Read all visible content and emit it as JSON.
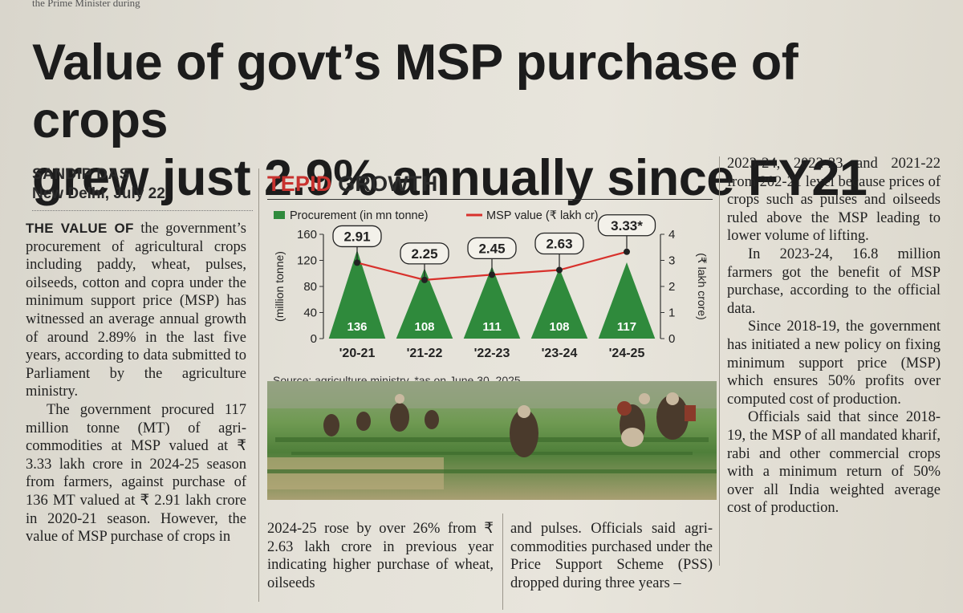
{
  "masthead_fragment": "the Prime Minister during",
  "headline": {
    "line1": "Value of govt’s MSP purchase of crops",
    "line2": "grew just 2.9% annually since FY21"
  },
  "byline": {
    "author": "SANDIP DAS",
    "dateline": "New Delhi, July 22"
  },
  "article": {
    "col1": [
      {
        "lead": "THE VALUE OF",
        "text": " the government’s procurement of agricultural crops including paddy, wheat, pulses, oilseeds, cotton and copra under the minimum support price (MSP) has witnessed an average annual growth of around 2.89% in the last five years, according to data submitted to Parliament by the agriculture ministry."
      },
      {
        "text": "The government procured 117 million tonne (MT) of agri-commodities at MSP valued at ₹ 3.33 lakh crore in 2024-25 season from farmers, against purchase of 136 MT valued at ₹ 2.91 lakh crore in 2020-21 season. However, the value of MSP purchase of crops in"
      }
    ],
    "col2": "2024-25 rose by over 26% from ₹ 2.63 lakh crore in previous year indicating higher purchase of wheat, oilseeds",
    "col3": "and pulses. Officials said agri-commodities purchased under the Price Support Scheme (PSS) dropped during three years –",
    "col4": [
      {
        "text": "2023-24, 2022-23 and 2021-22 from 202-21 level because prices of crops such as pulses and oilseeds ruled above the MSP leading to lower volume of lifting."
      },
      {
        "text": "In 2023-24, 16.8 million farmers got the benefit of MSP purchase, according to the official data."
      },
      {
        "text": "Since 2018-19, the government has initiated a new policy on fixing minimum support price (MSP) which ensures 50% profits over computed cost of production."
      },
      {
        "text": "Officials said that since 2018-19, the MSP of all mandated kharif, rabi and other commercial crops with a minimum return of 50% over all India weighted average cost of production."
      }
    ]
  },
  "chart_title": {
    "part1": "TEPID",
    "part2": " GROWTH"
  },
  "chart_data": {
    "type": "bar",
    "title": "TEPID GROWTH",
    "categories": [
      "'20-21",
      "'21-22",
      "'22-23",
      "'23-24",
      "'24-25"
    ],
    "series": [
      {
        "name": "Procurement (in mn tonne)",
        "values": [
          136,
          108,
          111,
          108,
          117
        ],
        "axis": "left",
        "style": "triangle-bar",
        "color": "#2f8a3c"
      },
      {
        "name": "MSP value (₹ lakh cr)",
        "values": [
          2.91,
          2.25,
          2.45,
          2.63,
          3.33
        ],
        "axis": "right",
        "style": "line",
        "color": "#d8312c",
        "value_labels": [
          "2.91",
          "2.25",
          "2.45",
          "2.63",
          "3.33*"
        ]
      }
    ],
    "ylabel": "(million tonne)",
    "y2label": "(₹ lakh crore)",
    "ylim": [
      0,
      160
    ],
    "yticks": [
      0,
      40,
      80,
      120,
      160
    ],
    "y2lim": [
      0,
      4
    ],
    "y2ticks": [
      0,
      1,
      2,
      3,
      4
    ],
    "grid": false,
    "legend": "top",
    "source": "Source: agriculture ministry, *as on June 30, 2025"
  }
}
